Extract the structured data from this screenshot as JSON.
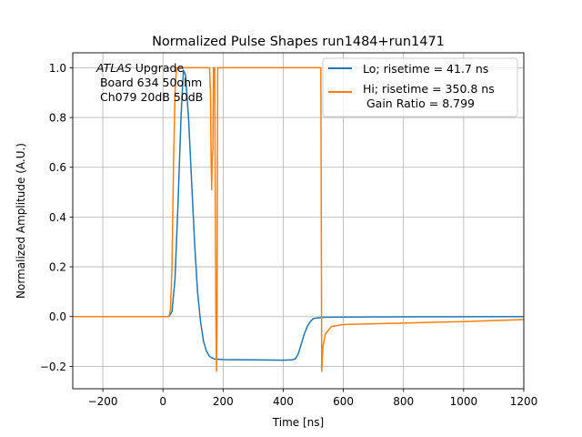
{
  "chart_data": {
    "type": "line",
    "title": "Normalized Pulse Shapes run1484+run1471",
    "xlabel": "Time [ns]",
    "ylabel": "Normalized Amplitude (A.U.)",
    "xlim": [
      -300,
      1200
    ],
    "ylim": [
      -0.29,
      1.06
    ],
    "xticks": [
      -200,
      0,
      200,
      400,
      600,
      800,
      1000,
      1200
    ],
    "xtick_labels": [
      "−200",
      "0",
      "200",
      "400",
      "600",
      "800",
      "1000",
      "1200"
    ],
    "yticks": [
      -0.2,
      0.0,
      0.2,
      0.4,
      0.6,
      0.8,
      1.0
    ],
    "ytick_labels": [
      "−0.2",
      "0.0",
      "0.2",
      "0.4",
      "0.6",
      "0.8",
      "1.0"
    ],
    "grid": true,
    "legend_position": "top-right",
    "annotation": {
      "italic": "ATLAS",
      "line1_rest": " Upgrade",
      "line2": " Board 634 50ohm",
      "line3": " Ch079 20dB 50dB"
    },
    "series": [
      {
        "name": "Lo; risetime = 41.7 ns",
        "color": "#1f77b4",
        "points": [
          [
            -300,
            0.0
          ],
          [
            20,
            0.0
          ],
          [
            30,
            0.02
          ],
          [
            40,
            0.15
          ],
          [
            50,
            0.45
          ],
          [
            60,
            0.8
          ],
          [
            68,
            0.99
          ],
          [
            75,
            0.97
          ],
          [
            85,
            0.8
          ],
          [
            95,
            0.55
          ],
          [
            105,
            0.3
          ],
          [
            115,
            0.1
          ],
          [
            125,
            -0.02
          ],
          [
            135,
            -0.1
          ],
          [
            145,
            -0.14
          ],
          [
            155,
            -0.16
          ],
          [
            170,
            -0.17
          ],
          [
            200,
            -0.173
          ],
          [
            300,
            -0.174
          ],
          [
            400,
            -0.175
          ],
          [
            430,
            -0.174
          ],
          [
            440,
            -0.17
          ],
          [
            450,
            -0.15
          ],
          [
            460,
            -0.11
          ],
          [
            470,
            -0.07
          ],
          [
            480,
            -0.04
          ],
          [
            490,
            -0.02
          ],
          [
            500,
            -0.008
          ],
          [
            530,
            -0.003
          ],
          [
            600,
            -0.002
          ],
          [
            800,
            -0.001
          ],
          [
            1200,
            0.0
          ]
        ]
      },
      {
        "name": "Hi; risetime = 350.8 ns",
        "extra_line": " Gain Ratio = 8.799",
        "color": "#ff7f0e",
        "points": [
          [
            -300,
            0.0
          ],
          [
            20,
            0.0
          ],
          [
            25,
            0.03
          ],
          [
            30,
            0.2
          ],
          [
            35,
            0.6
          ],
          [
            40,
            0.9
          ],
          [
            45,
            1.0
          ],
          [
            155,
            1.0
          ],
          [
            158,
            0.9
          ],
          [
            160,
            0.65
          ],
          [
            162,
            0.51
          ],
          [
            164,
            0.64
          ],
          [
            166,
            0.67
          ],
          [
            168,
            1.0
          ],
          [
            172,
            1.0
          ],
          [
            174,
            0.5
          ],
          [
            176,
            0.0
          ],
          [
            178,
            -0.22
          ],
          [
            180,
            0.0
          ],
          [
            182,
            1.0
          ],
          [
            525,
            1.0
          ],
          [
            527,
            0.2
          ],
          [
            528,
            -0.22
          ],
          [
            532,
            -0.12
          ],
          [
            540,
            -0.07
          ],
          [
            560,
            -0.04
          ],
          [
            600,
            -0.032
          ],
          [
            700,
            -0.029
          ],
          [
            800,
            -0.026
          ],
          [
            900,
            -0.023
          ],
          [
            1000,
            -0.02
          ],
          [
            1100,
            -0.016
          ],
          [
            1200,
            -0.012
          ]
        ]
      }
    ]
  }
}
